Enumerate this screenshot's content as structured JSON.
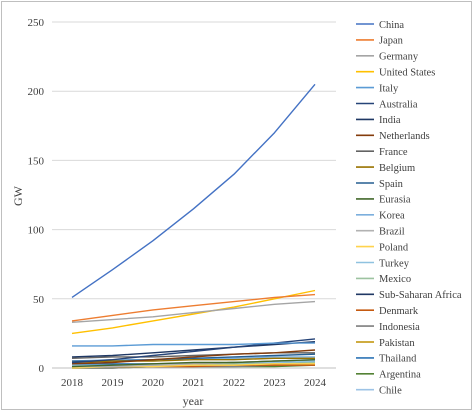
{
  "chart_data": {
    "type": "line",
    "title": "",
    "xlabel": "year",
    "ylabel": "GW",
    "ylim": [
      0,
      250
    ],
    "yticks": [
      0,
      50,
      100,
      150,
      200,
      250
    ],
    "x": [
      "2018",
      "2019",
      "2020",
      "2021",
      "2022",
      "2023",
      "2024"
    ],
    "grid": "horizontal",
    "legend_position": "right",
    "series": [
      {
        "name": "China",
        "color": "#4472c4",
        "values": [
          51,
          71,
          92,
          115,
          140,
          170,
          205
        ]
      },
      {
        "name": "Japan",
        "color": "#ed7d31",
        "values": [
          34,
          38,
          42,
          45,
          48,
          51,
          53
        ]
      },
      {
        "name": "Germany",
        "color": "#a5a5a5",
        "values": [
          33,
          35,
          37,
          40,
          43,
          46,
          48
        ]
      },
      {
        "name": "United States",
        "color": "#ffc000",
        "values": [
          25,
          29,
          34,
          39,
          44,
          50,
          56
        ]
      },
      {
        "name": "Italy",
        "color": "#5b9bd5",
        "values": [
          16,
          16,
          17,
          17,
          17,
          18,
          18
        ]
      },
      {
        "name": "Australia",
        "color": "#264478",
        "values": [
          4,
          6,
          9,
          12,
          15,
          18,
          21
        ]
      },
      {
        "name": "India",
        "color": "#1f3864",
        "values": [
          8,
          9,
          11,
          13,
          15,
          17,
          19
        ]
      },
      {
        "name": "Netherlands",
        "color": "#843c0c",
        "values": [
          3,
          4,
          6,
          8,
          10,
          11,
          13
        ]
      },
      {
        "name": "France",
        "color": "#636363",
        "values": [
          7,
          8,
          8,
          9,
          10,
          11,
          11
        ]
      },
      {
        "name": "Belgium",
        "color": "#997300",
        "values": [
          4,
          5,
          5,
          6,
          6,
          7,
          7
        ]
      },
      {
        "name": "Spain",
        "color": "#255e91",
        "values": [
          5,
          5,
          6,
          7,
          8,
          9,
          10
        ]
      },
      {
        "name": "Eurasia",
        "color": "#43682b",
        "values": [
          1,
          2,
          3,
          4,
          4,
          5,
          6
        ]
      },
      {
        "name": "Korea",
        "color": "#7cafdd",
        "values": [
          5,
          6,
          6,
          7,
          7,
          8,
          8
        ]
      },
      {
        "name": "Brazil",
        "color": "#b2b2b2",
        "values": [
          1,
          1,
          2,
          3,
          4,
          5,
          6
        ]
      },
      {
        "name": "Poland",
        "color": "#ffd34d",
        "values": [
          0,
          1,
          1,
          2,
          2,
          3,
          3
        ]
      },
      {
        "name": "Turkey",
        "color": "#8fc2e0",
        "values": [
          2,
          2,
          3,
          3,
          4,
          4,
          5
        ]
      },
      {
        "name": "Mexico",
        "color": "#9dc3a0",
        "values": [
          1,
          1,
          2,
          2,
          3,
          3,
          4
        ]
      },
      {
        "name": "Sub-Saharan Africa",
        "color": "#203864",
        "values": [
          2,
          2,
          3,
          3,
          4,
          5,
          5
        ]
      },
      {
        "name": "Denmark",
        "color": "#c55a11",
        "values": [
          1,
          1,
          1,
          1,
          2,
          2,
          2
        ]
      },
      {
        "name": "Indonesia",
        "color": "#7f7f7f",
        "values": [
          0,
          0,
          1,
          1,
          1,
          2,
          2
        ]
      },
      {
        "name": "Pakistan",
        "color": "#bf9000",
        "values": [
          1,
          1,
          1,
          2,
          2,
          2,
          3
        ]
      },
      {
        "name": "Thailand",
        "color": "#2e75b6",
        "values": [
          3,
          3,
          3,
          3,
          3,
          4,
          4
        ]
      },
      {
        "name": "Argentina",
        "color": "#548235",
        "values": [
          0,
          0,
          1,
          1,
          1,
          1,
          2
        ]
      },
      {
        "name": "Chile",
        "color": "#9dc3e6",
        "values": [
          2,
          2,
          3,
          3,
          3,
          4,
          4
        ]
      }
    ]
  }
}
